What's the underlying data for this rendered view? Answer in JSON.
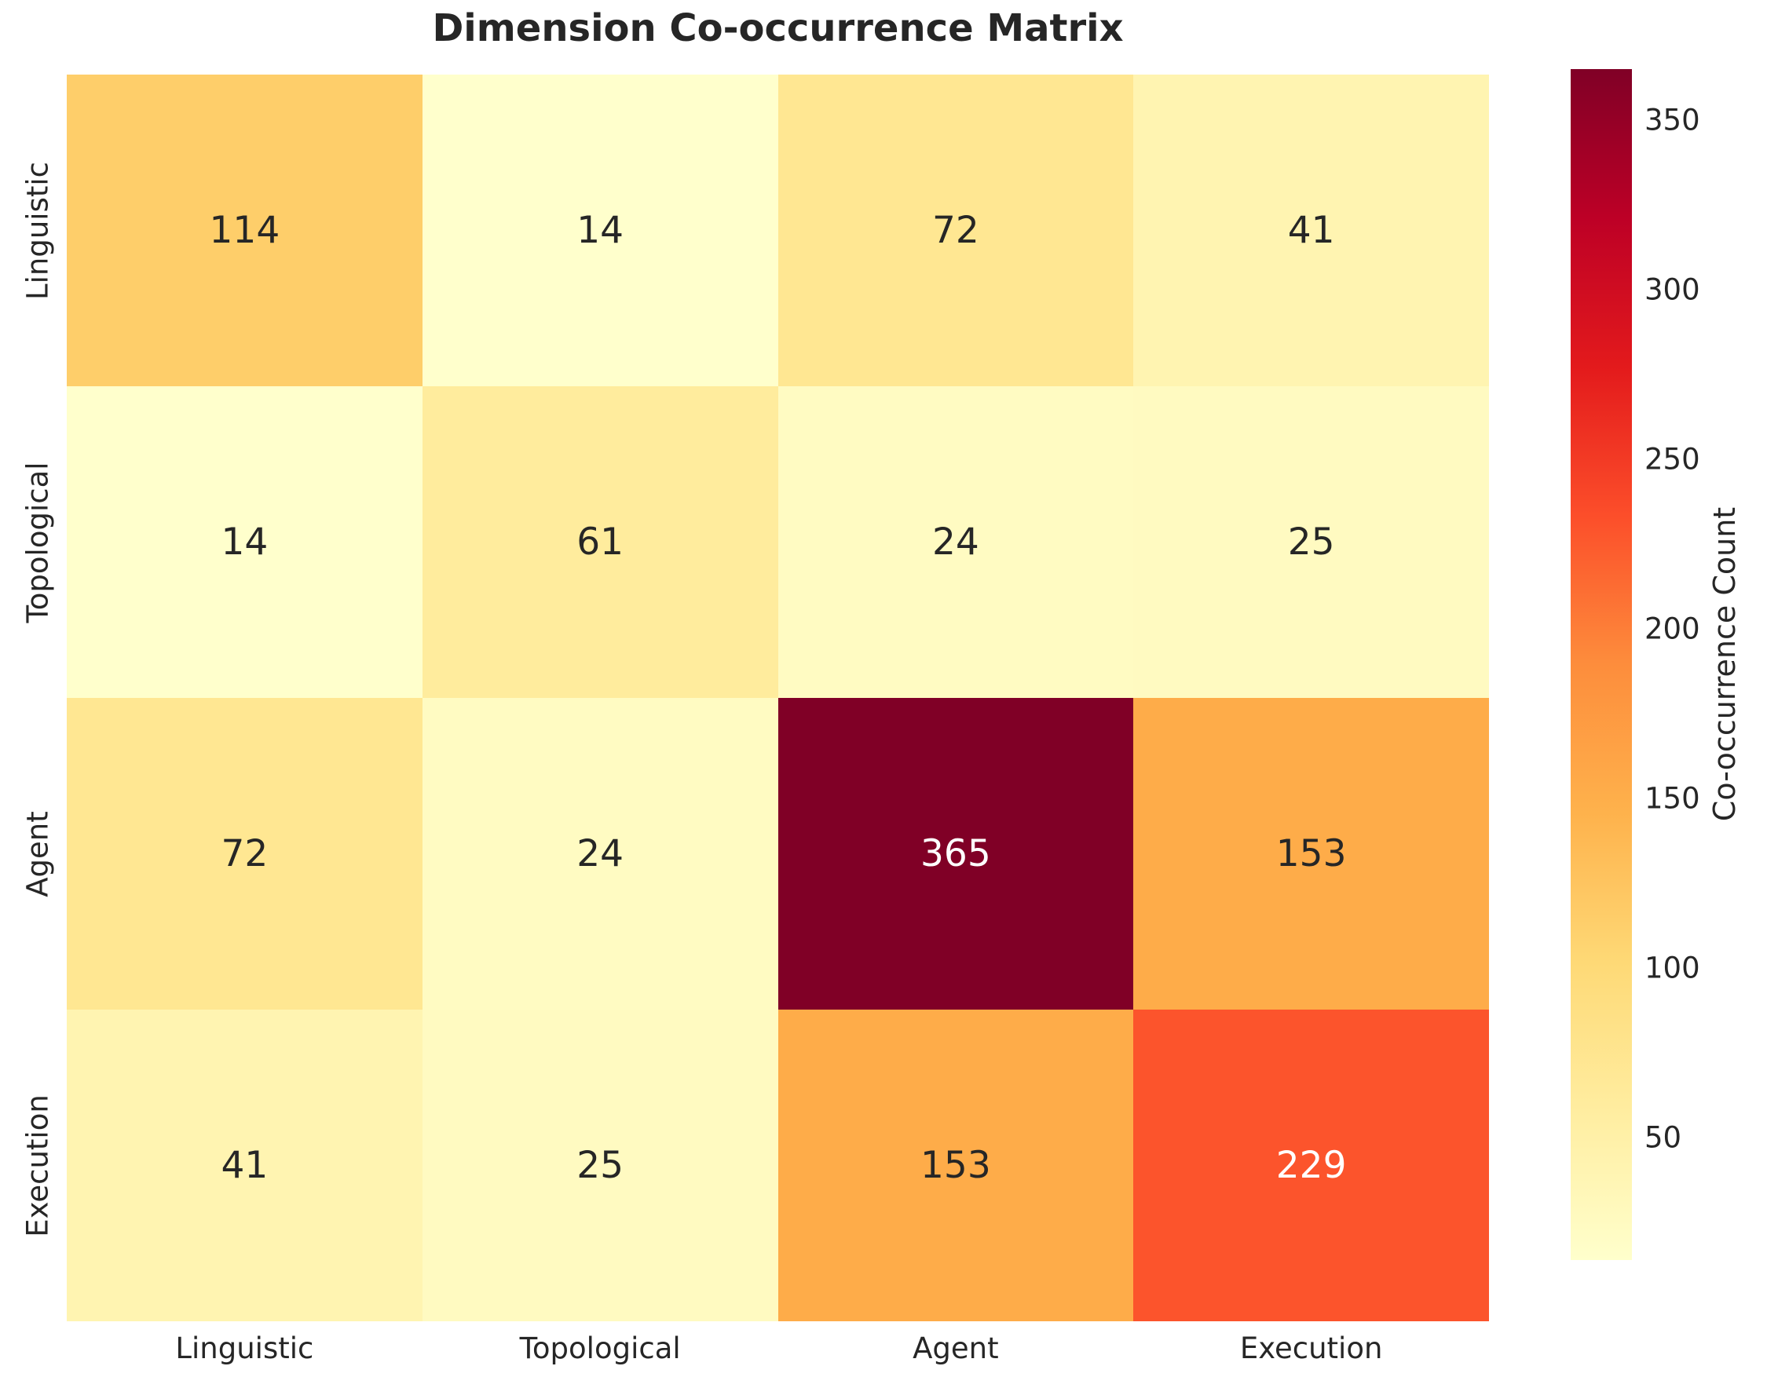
{
  "title": "Dimension Co-occurrence Matrix",
  "chart_data": {
    "type": "heatmap",
    "title": "Dimension Co-occurrence Matrix",
    "categories": [
      "Linguistic",
      "Topological",
      "Agent",
      "Execution"
    ],
    "x_tick_labels": [
      "Linguistic",
      "Topological",
      "Agent",
      "Execution"
    ],
    "y_tick_labels": [
      "Linguistic",
      "Topological",
      "Agent",
      "Execution"
    ],
    "matrix": [
      [
        114,
        14,
        72,
        41
      ],
      [
        14,
        61,
        24,
        25
      ],
      [
        72,
        24,
        365,
        153
      ],
      [
        41,
        25,
        153,
        229
      ]
    ],
    "annotated": true,
    "vmin": 14,
    "vmax": 365,
    "colorbar": {
      "label": "Co-occurrence Count",
      "ticks": [
        50,
        100,
        150,
        200,
        250,
        300,
        350
      ],
      "position": "right"
    },
    "colormap": {
      "name": "YlOrRd",
      "stops": [
        "#ffffcc",
        "#ffeda0",
        "#fed976",
        "#feb24c",
        "#fd8d3c",
        "#fc4e2a",
        "#e31a1c",
        "#bd0026",
        "#800026"
      ]
    },
    "grid": false
  },
  "colors": {
    "background": "#ffffff",
    "text": "#262626",
    "annotation_dark": "#262626",
    "annotation_light": "#ffffff",
    "max_cell": "#800026",
    "min_cell": "#ffffcc"
  }
}
